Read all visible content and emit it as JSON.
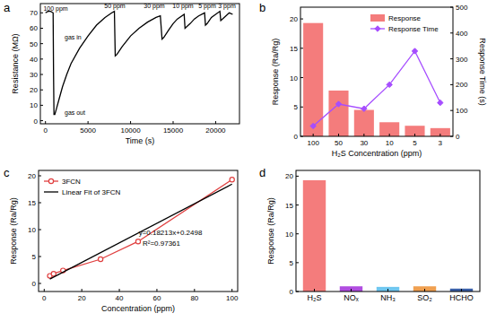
{
  "chart_data": [
    {
      "type": "line",
      "title": "a",
      "xlabel": "Time (s)",
      "ylabel": "Resistance (MΩ)",
      "color": "#000000",
      "x": [
        0,
        300,
        600,
        900,
        950,
        1000,
        1100,
        1300,
        1600,
        2000,
        2500,
        3000,
        4000,
        5000,
        6000,
        7000,
        7800,
        8100,
        8200,
        8400,
        9000,
        10000,
        11000,
        12000,
        13000,
        13500,
        13700,
        13900,
        14500,
        15000,
        15500,
        16300,
        16400,
        16600,
        17000,
        17500,
        18000,
        18700,
        18800,
        19000,
        19500,
        20000,
        20500,
        20600,
        20800,
        21200,
        21600,
        22000
      ],
      "values": [
        70,
        71,
        71,
        70,
        30,
        4,
        4,
        8,
        14,
        22,
        30,
        37,
        47,
        55,
        62,
        67,
        70,
        71,
        42,
        43,
        48,
        55,
        60,
        64,
        67,
        68,
        53,
        54,
        59,
        63,
        66,
        69,
        60,
        61,
        63,
        66,
        68,
        70,
        62,
        63,
        67,
        69,
        71,
        65,
        66,
        68,
        70,
        69
      ],
      "xlim": [
        -600,
        22800
      ],
      "xticks": [
        0,
        5000,
        10000,
        15000,
        20000
      ],
      "ylim": [
        -2,
        76
      ],
      "yticks": [
        0,
        10,
        20,
        30,
        40,
        50,
        60,
        70
      ],
      "annotations": [
        "100 ppm",
        "50 ppm",
        "30 ppm",
        "10 ppm",
        "5 ppm",
        "3 ppm",
        "gas in",
        "gas out"
      ]
    },
    {
      "type": "bar",
      "title": "b",
      "xlabel": "H₂S Concentration (ppm)",
      "ylabel": "Response (Ra/Rg)",
      "y2label": "Response Time (s)",
      "categories": [
        "100",
        "50",
        "30",
        "10",
        "5",
        "3"
      ],
      "ylim": [
        0,
        22
      ],
      "yticks": [
        0,
        5,
        10,
        15,
        20
      ],
      "y2lim": [
        0,
        500
      ],
      "y2ticks": [
        0,
        100,
        200,
        300,
        400,
        500
      ],
      "legend": "top-right",
      "series": [
        {
          "name": "Response",
          "type": "bar",
          "color": "#f47c7c",
          "values": [
            19.3,
            7.8,
            4.5,
            2.4,
            1.8,
            1.4
          ]
        },
        {
          "name": "Response Time",
          "type": "line",
          "axis": "y2",
          "color": "#a64dff",
          "marker": "diamond",
          "values": [
            40,
            125,
            107,
            200,
            330,
            130
          ]
        }
      ]
    },
    {
      "type": "line",
      "title": "c",
      "xlabel": "Concentration (ppm)",
      "ylabel": "Response (Ra/Rg)",
      "xlim": [
        -3,
        103
      ],
      "xticks": [
        0,
        20,
        40,
        60,
        80,
        100
      ],
      "ylim": [
        -1.5,
        21
      ],
      "yticks": [
        0,
        5,
        10,
        15,
        20
      ],
      "legend": "top-left",
      "annotations": [
        "y=0.18213x+0.2498",
        "R²=0.97361"
      ],
      "series": [
        {
          "name": "3FCN",
          "color": "#e04040",
          "marker": "circle",
          "x": [
            3,
            5,
            10,
            30,
            50,
            100
          ],
          "values": [
            1.4,
            1.8,
            2.4,
            4.5,
            7.8,
            19.3
          ]
        },
        {
          "name": "Linear Fit of 3FCN",
          "color": "#000000",
          "marker": "none",
          "x": [
            3,
            100
          ],
          "values": [
            0.8,
            18.46
          ]
        }
      ]
    },
    {
      "type": "bar",
      "title": "d",
      "ylabel": "Response (Ra/Rg)",
      "categories": [
        "H₂S",
        "NOₓ",
        "NH₃",
        "SO₂",
        "HCHO"
      ],
      "values": [
        19.3,
        0.9,
        0.8,
        0.9,
        0.5
      ],
      "colors": [
        "#f47c7c",
        "#b04de0",
        "#6fc7f0",
        "#f0a050",
        "#3a5fa8"
      ],
      "ylim": [
        0,
        21
      ],
      "yticks": [
        0,
        5,
        10,
        15,
        20
      ]
    }
  ]
}
